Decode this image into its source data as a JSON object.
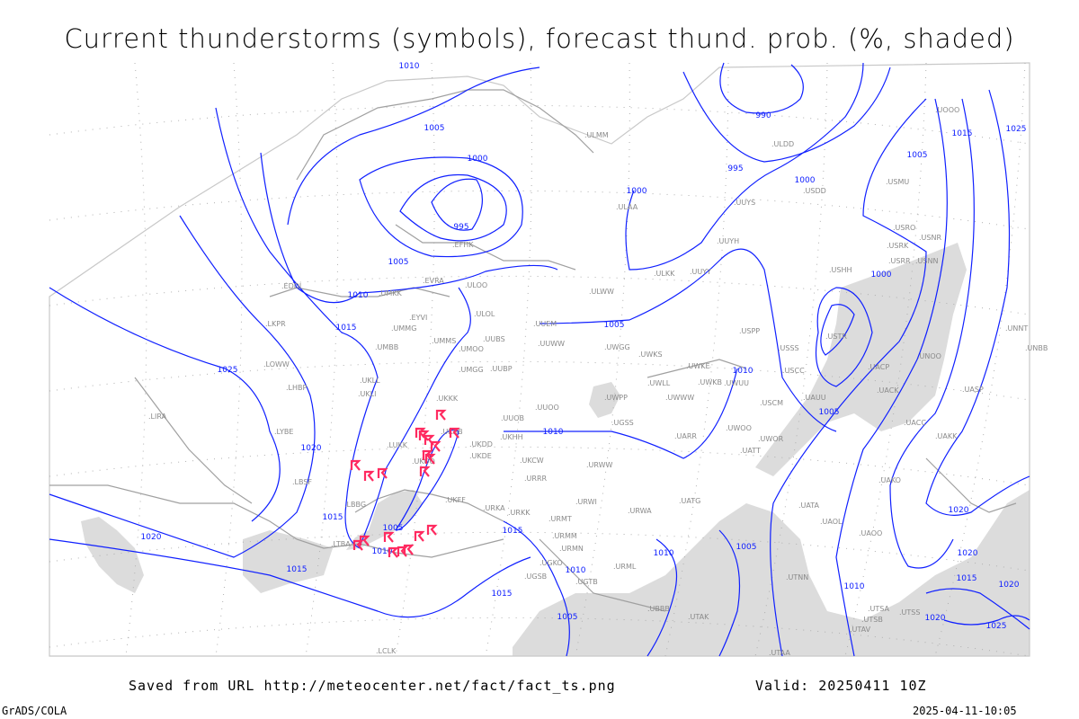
{
  "title": "Current thunderstorms (symbols), forecast thund. prob. (%, shaded)",
  "footer": {
    "saved_from": "Saved from URL http://meteocenter.net/fact/fact_ts.png",
    "valid": "Valid: 20250411 10Z",
    "software": "GrADS/COLA",
    "timestamp": "2025-04-11-10:05"
  },
  "colors": {
    "isobar": "#1020ff",
    "coast": "#a0a0a0",
    "shading": "#dcdcdc",
    "thunderstorm_symbol": "#ff2a60",
    "station_label": "#8a8a8a"
  },
  "symbol_legend": {
    "thunderstorm": "thunderstorm-symbol"
  },
  "isobar_labels": [
    "1010",
    "1005",
    "1000",
    "995",
    "990",
    "995",
    "1000",
    "1000",
    "1005",
    "1015",
    "1025",
    "1005",
    "1010",
    "1015",
    "1025",
    "1020",
    "1005",
    "1000",
    "1010",
    "1005",
    "1010",
    "1015",
    "1020",
    "1005",
    "1010",
    "1015",
    "1015",
    "1010",
    "1015",
    "1005",
    "1010",
    "1005",
    "1010",
    "1020",
    "1020",
    "1015",
    "1020",
    "1020",
    "1025"
  ],
  "stations": [
    "ULMM",
    "ULDD",
    "ULAA",
    "UUYS",
    "USDD",
    "USMU",
    "USRO",
    "USRK",
    "USNR",
    "USRR",
    "USNN",
    "USHH",
    "USTR",
    "UUYH",
    "ULKK",
    "UUYY",
    "ULWW",
    "UUEM",
    "UUWW",
    "UWGG",
    "UWKS",
    "USPP",
    "USSS",
    "USCC",
    "UWKE",
    "UWKB",
    "UWUU",
    "UWLL",
    "UWWW",
    "UWPP",
    "USCM",
    "UAUU",
    "UACP",
    "UNOO",
    "UACK",
    "UASP",
    "UUOO",
    "UUOB",
    "UKHH",
    "UKDD",
    "UKDE",
    "UKBB",
    "UKKK",
    "UKLL",
    "UKLI",
    "UMBB",
    "UMMG",
    "UMMS",
    "UMGG",
    "UUBP",
    "UMOO",
    "UUBS",
    "ULOL",
    "EYVI",
    "EVRA",
    "ULOO",
    "UMKK",
    "EDDI",
    "LKPR",
    "LOWW",
    "LHBP",
    "LIRA",
    "LYBE",
    "LUKK",
    "UKOO",
    "UKFF",
    "URKA",
    "URKK",
    "URRR",
    "UKCW",
    "URWI",
    "URMT",
    "URMM",
    "URMN",
    "URWA",
    "UATG",
    "UATT",
    "UWOO",
    "UWOR",
    "UARR",
    "UGSS",
    "URWW",
    "UATA",
    "UAOL",
    "UACC",
    "UAKK",
    "UAKO",
    "UAOO",
    "LBSF",
    "LBBG",
    "LTBA",
    "UGKO",
    "UGSB",
    "UGTB",
    "UBBB",
    "UTAK",
    "UTNN",
    "UTSA",
    "UTSS",
    "UTSB",
    "UTAV",
    "UTAA",
    "LCLK",
    "URML",
    "UNNT",
    "UNBB",
    "UOOO",
    "EFHK"
  ],
  "thunderstorm_count": 20
}
